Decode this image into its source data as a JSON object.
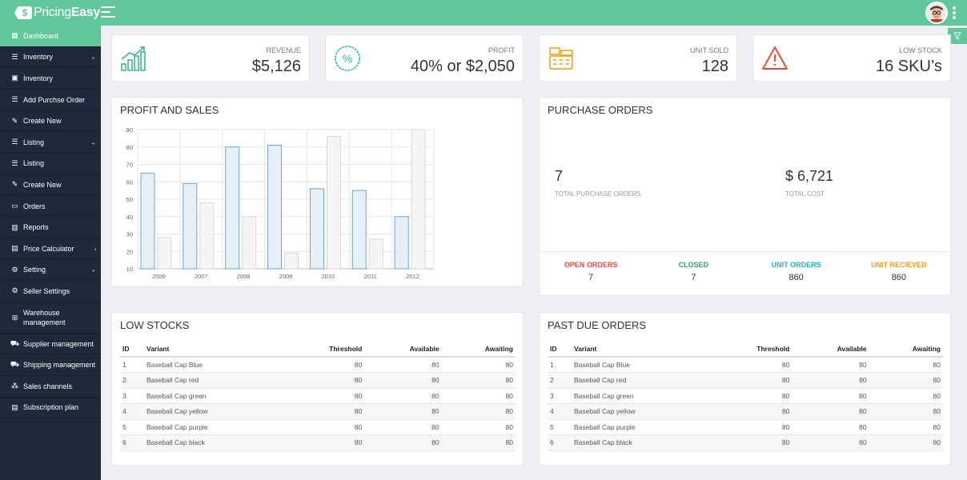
{
  "app": {
    "logo_prefix": "Pricing",
    "logo_bold": "Easy",
    "logo_badge": "$"
  },
  "colors": {
    "accent": "#5fc79a",
    "sidebar": "#1e2a3b",
    "red": "#e74c3c",
    "green": "#27ae60",
    "teal": "#1fb5ad",
    "orange": "#f39c12"
  },
  "sidebar": {
    "items": [
      {
        "label": "Dashboard",
        "icon": "grid-icon"
      },
      {
        "label": "Inventory",
        "icon": "list-icon",
        "chevron": "v"
      },
      {
        "label": "Inventory",
        "icon": "box-icon"
      },
      {
        "label": "Add Purchse Order",
        "icon": "list-icon"
      },
      {
        "label": "Create New",
        "icon": "edit-icon"
      },
      {
        "label": "Listing",
        "icon": "list-icon",
        "chevron": "v"
      },
      {
        "label": "Listing",
        "icon": "list-icon"
      },
      {
        "label": "Create New",
        "icon": "edit-icon"
      },
      {
        "label": "Orders",
        "icon": "orders-icon"
      },
      {
        "label": "Reports",
        "icon": "bar-chart-icon"
      },
      {
        "label": "Price Calculator",
        "icon": "calculator-icon",
        "chevron": ">"
      },
      {
        "label": "Setting",
        "icon": "gear-icon",
        "chevron": "v"
      },
      {
        "label": "Seller Settings",
        "icon": "gear-icon"
      },
      {
        "label": "Warehouse management",
        "icon": "warehouse-icon"
      },
      {
        "label": "Supplier management",
        "icon": "truck-icon"
      },
      {
        "label": "Shipping management",
        "icon": "shipping-icon"
      },
      {
        "label": "Sales channels",
        "icon": "share-icon"
      },
      {
        "label": "Subscription plan",
        "icon": "subscription-icon"
      }
    ]
  },
  "stats": {
    "revenue": {
      "label": "REVENUE",
      "value": "$5,126"
    },
    "profit": {
      "label": "PROFIT",
      "value": "40% or $2,050"
    },
    "unit_sold": {
      "label": "UNIT SOLD",
      "value": "128"
    },
    "low_stock": {
      "label": "LOW STOCK",
      "value": "16 SKU’s"
    }
  },
  "profit_sales": {
    "title": "PROFIT AND SALES"
  },
  "chart_data": {
    "type": "bar",
    "categories": [
      "2006",
      "2007",
      "2008",
      "2009",
      "2010",
      "2011",
      "2012"
    ],
    "series": [
      {
        "values": [
          65,
          59,
          80,
          81,
          56,
          55,
          40
        ],
        "color": "#6fa3d0"
      },
      {
        "values": [
          28,
          48,
          40,
          19,
          86,
          27,
          90
        ],
        "color": "#d9d9d9"
      }
    ],
    "yticks": [
      10,
      20,
      30,
      40,
      50,
      60,
      70,
      80,
      90
    ],
    "ylim": [
      10,
      90
    ],
    "grid": true
  },
  "purchase_orders": {
    "title": "PURCHASE ORDERS",
    "total_orders": "7",
    "total_orders_label": "TOTAL PURCHASE ORDERS",
    "total_cost": "$ 6,721",
    "total_cost_label": "TOTAL COST",
    "footer": [
      {
        "label": "OPEN ORDERS",
        "value": "7",
        "color": "#e74c3c"
      },
      {
        "label": "CLOSED",
        "value": "7",
        "color": "#27ae60"
      },
      {
        "label": "UNIT ORDERS",
        "value": "860",
        "color": "#1fb5ad"
      },
      {
        "label": "UNIT RECIEVED",
        "value": "860",
        "color": "#f39c12"
      }
    ]
  },
  "low_stocks": {
    "title": "LOW STOCKS",
    "columns": [
      "ID",
      "Variant",
      "Threshold",
      "Available",
      "Awaiting"
    ],
    "rows": [
      [
        "1",
        "Baseball Cap Blue",
        "80",
        "80",
        "80"
      ],
      [
        "2",
        "Baseball Cap red",
        "80",
        "80",
        "80"
      ],
      [
        "3",
        "Baseball Cap green",
        "80",
        "80",
        "80"
      ],
      [
        "4",
        "Baseball Cap yellow",
        "80",
        "80",
        "80"
      ],
      [
        "5",
        "Baseball Cap purple",
        "80",
        "80",
        "80"
      ],
      [
        "6",
        "Baseball Cap black",
        "80",
        "80",
        "80"
      ]
    ]
  },
  "past_due": {
    "title": "PAST DUE ORDERS",
    "columns": [
      "ID",
      "Variant",
      "Threshold",
      "Available",
      "Awaiting"
    ],
    "rows": [
      [
        "1",
        "Baseball Cap Blue",
        "80",
        "80",
        "80"
      ],
      [
        "2",
        "Baseball Cap red",
        "80",
        "80",
        "80"
      ],
      [
        "3",
        "Baseball Cap green",
        "80",
        "80",
        "80"
      ],
      [
        "4",
        "Baseball Cap yellow",
        "80",
        "80",
        "80"
      ],
      [
        "5",
        "Baseball Cap purple",
        "80",
        "80",
        "80"
      ],
      [
        "6",
        "Baseball Cap black",
        "80",
        "80",
        "80"
      ]
    ]
  }
}
